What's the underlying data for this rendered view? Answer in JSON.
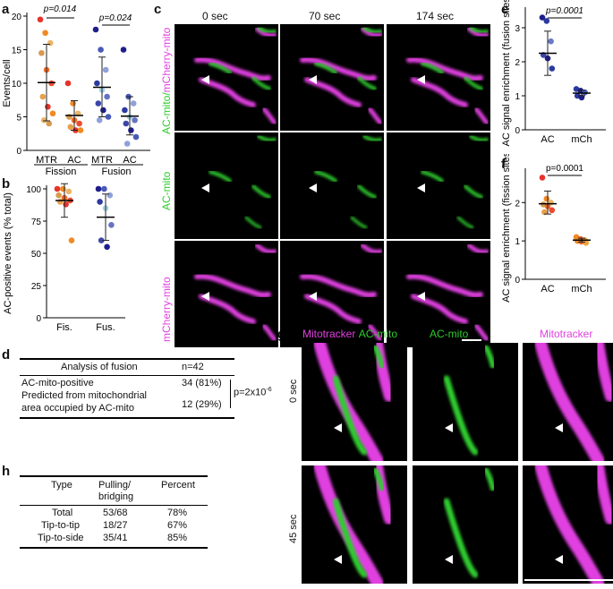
{
  "panels": {
    "a": {
      "label": "a"
    },
    "b": {
      "label": "b"
    },
    "c": {
      "label": "c"
    },
    "d": {
      "label": "d"
    },
    "e": {
      "label": "e"
    },
    "f": {
      "label": "f"
    },
    "g": {
      "label": "g"
    },
    "h": {
      "label": "h"
    }
  },
  "panel_c": {
    "times": [
      "0 sec",
      "70 sec",
      "174 sec"
    ],
    "row_labels": {
      "merge_a": "AC-mito/",
      "merge_b": "mCherry-mito",
      "green": "AC-mito",
      "magenta": "mCherry-mito"
    },
    "colors": {
      "green": "#2ecc2e",
      "magenta": "#e040e0"
    }
  },
  "panel_g": {
    "headers": {
      "merge_a": "Mitotracker",
      "merge_slash": "/",
      "merge_b": "AC-mito",
      "green": "AC-mito",
      "magenta": "Mitotracker"
    },
    "times": [
      "0 sec",
      "45 sec"
    ]
  },
  "table_d": {
    "title": "Analysis of fusion",
    "n": "n=42",
    "row1_label": "AC-mito-positive",
    "row1_value": "34 (81%)",
    "row2_label_a": "Predicted from mitochondrial",
    "row2_label_b": "area occupied by AC-mito",
    "row2_value": "12 (29%)",
    "pvalue_prefix": "p=2x10",
    "pvalue_exp": "-6"
  },
  "table_h": {
    "headers": [
      "Type",
      "Pulling/\nbridging",
      "Percent"
    ],
    "header_pull_a": "Pulling/",
    "header_pull_b": "bridging",
    "rows": [
      {
        "type": "Total",
        "pull": "53/68",
        "pct": "78%"
      },
      {
        "type": "Tip-to-tip",
        "pull": "18/27",
        "pct": "67%"
      },
      {
        "type": "Tip-to-side",
        "pull": "35/41",
        "pct": "85%"
      }
    ]
  },
  "chart_data": [
    {
      "id": "a",
      "type": "scatter",
      "ylabel": "Events/cell",
      "ylim": [
        0,
        20
      ],
      "yticks": [
        "0",
        "5",
        "10",
        "15",
        "20"
      ],
      "categories": [
        "MTR",
        "AC",
        "MTR",
        "AC"
      ],
      "groups": [
        "Fission",
        "Fusion"
      ],
      "annotations": [
        "p=0.014",
        "p=0.024"
      ],
      "series": [
        {
          "name": "Fission MTR",
          "mean": 10.1,
          "sd": [
            4.4,
            15.8
          ],
          "values": [
            19.5,
            17.5,
            16,
            14.5,
            12,
            10,
            8,
            6.5,
            5.5,
            4.5,
            4
          ]
        },
        {
          "name": "Fission AC",
          "mean": 5.2,
          "sd": [
            3,
            7.4
          ],
          "values": [
            10,
            7,
            5.5,
            5,
            4.5,
            4,
            3.5,
            3,
            3
          ]
        },
        {
          "name": "Fusion MTR",
          "mean": 9.4,
          "sd": [
            5,
            13.9
          ],
          "values": [
            18,
            15,
            12,
            10,
            9,
            8,
            7,
            6,
            5,
            4.5
          ]
        },
        {
          "name": "Fusion AC",
          "mean": 5.1,
          "sd": [
            2.3,
            8
          ],
          "values": [
            15,
            8,
            7,
            6,
            5,
            4.5,
            4,
            3,
            2,
            1
          ]
        }
      ]
    },
    {
      "id": "b",
      "type": "scatter",
      "ylabel": "AC-positive events (% total)",
      "ylim": [
        0,
        100
      ],
      "yticks": [
        "0",
        "25",
        "50",
        "75",
        "100"
      ],
      "categories": [
        "Fis.",
        "Fus."
      ],
      "series": [
        {
          "name": "Fis.",
          "mean": 91,
          "sd": [
            78,
            104
          ],
          "values": [
            100,
            100,
            98,
            95,
            93,
            91,
            90,
            88,
            60
          ]
        },
        {
          "name": "Fus.",
          "mean": 78,
          "sd": [
            60,
            96
          ],
          "values": [
            100,
            100,
            95,
            90,
            85,
            72,
            60,
            55
          ]
        }
      ]
    },
    {
      "id": "e",
      "type": "scatter",
      "ylabel": "AC signal enrichment (fusion sites)",
      "ylim": [
        0,
        3.5
      ],
      "yticks": [
        "0",
        "1",
        "2",
        "3"
      ],
      "categories": [
        "AC",
        "mCh"
      ],
      "annotations": [
        "p=0.0001"
      ],
      "series": [
        {
          "name": "AC",
          "mean": 2.25,
          "sd": [
            1.6,
            2.9
          ],
          "values": [
            3.3,
            3.2,
            2.6,
            2.2,
            2.1,
            1.8
          ]
        },
        {
          "name": "mCh",
          "mean": 1.08,
          "sd": [
            1.0,
            1.16
          ],
          "values": [
            1.2,
            1.15,
            1.1,
            1.0,
            0.95
          ]
        }
      ]
    },
    {
      "id": "f",
      "type": "scatter",
      "ylabel": "AC signal enrichment (fission sites)",
      "ylim": [
        0,
        2.8
      ],
      "yticks": [
        "0",
        "1",
        "2"
      ],
      "categories": [
        "AC",
        "mCh"
      ],
      "annotations": [
        "p=0.0001"
      ],
      "series": [
        {
          "name": "AC",
          "mean": 1.97,
          "sd": [
            1.7,
            2.3
          ],
          "values": [
            2.65,
            2.1,
            2.0,
            1.95,
            1.9,
            1.8,
            1.75
          ]
        },
        {
          "name": "mCh",
          "mean": 1.02,
          "sd": [
            0.97,
            1.07
          ],
          "values": [
            1.1,
            1.05,
            1.02,
            1.0,
            0.98,
            0.95
          ]
        }
      ]
    }
  ]
}
